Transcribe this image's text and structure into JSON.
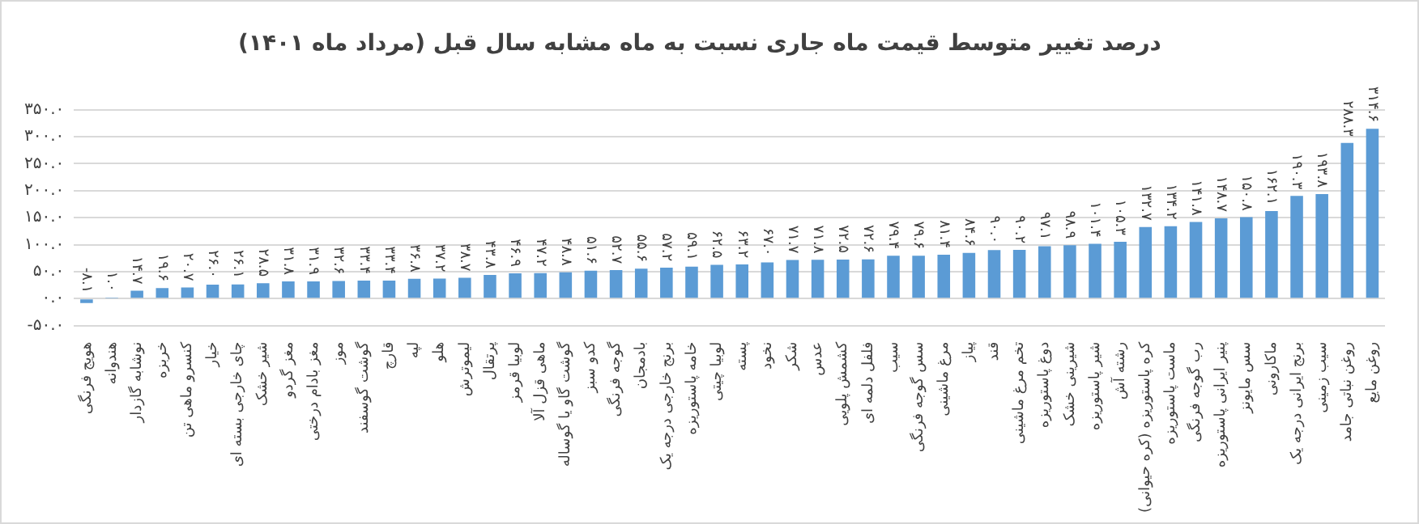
{
  "chart_data": {
    "type": "bar",
    "title": "درصد تغییر متوسط قیمت ماه جاری نسبت به ماه مشابه سال قبل (مرداد ماه ۱۴۰۱)",
    "categories": [
      "هویج فرنگی",
      "هندوانه",
      "نوشابه گازدار",
      "خربزه",
      "کنسرو ماهی تن",
      "خیار",
      "چای خارجی بسته ای",
      "شیر خشک",
      "مغز گردو",
      "مغز بادام درختی",
      "موز",
      "گوشت گوسفند",
      "قارچ",
      "لپه",
      "هلو",
      "لیموترش",
      "پرتقال",
      "لوبیا قرمز",
      "ماهی قزل آلا",
      "گوشت گاو یا گوساله",
      "کدو سبز",
      "گوجه فرنگی",
      "بادمجان",
      "برنج خارجی درجه یک",
      "خامه پاستوریزه",
      "لوبیا چیتی",
      "پسته",
      "نخود",
      "شکر",
      "عدس",
      "کشمش پلویی",
      "فلفل دلمه ای",
      "سیب",
      "سس گوجه فرنگی",
      "مرغ ماشینی",
      "پیاز",
      "قند",
      "تخم مرغ ماشینی",
      "دوغ پاستوریزه",
      "شیرینی خشک",
      "شیر پاستوریزه",
      "رشته آش",
      "کره پاستوریزه (کره حیوانی)",
      "ماست پاستوریزه",
      "رب گوجه فرنگی",
      "پنیر ایرانی پاستوریزه",
      "سس مایونز",
      "ماکارونی",
      "برنج ایرانی درجه یک",
      "سیب زمینی",
      "روغن نباتی جامد",
      "روغن مایع"
    ],
    "values": [
      -8.1,
      1.0,
      14.7,
      19.6,
      20.7,
      26.0,
      26.1,
      28.5,
      31.8,
      31.9,
      32.6,
      33.4,
      33.4,
      36.8,
      37.2,
      38.7,
      43.8,
      46.9,
      47.2,
      48.8,
      51.6,
      52.7,
      55.6,
      57.2,
      59.1,
      62.5,
      63.2,
      67.0,
      71.7,
      71.8,
      72.5,
      72.6,
      79.4,
      79.6,
      81.4,
      84.6,
      90.0,
      90.2,
      97.1,
      98.9,
      101.4,
      105.3,
      132.7,
      134.2,
      141.8,
      148.7,
      150.8,
      162.1,
      190.3,
      193.8,
      288.3,
      314.6
    ],
    "value_labels": [
      "-۸.۱",
      "۱.۰",
      "۱۴.۷",
      "۱۹.۶",
      "۲۰.۷",
      "۲۶.۰",
      "۲۶.۱",
      "۲۸.۵",
      "۳۱.۸",
      "۳۱.۹",
      "۳۲.۶",
      "۳۳.۴",
      "۳۳.۴",
      "۳۶.۸",
      "۳۷.۲",
      "۳۸.۷",
      "۴۳.۸",
      "۴۶.۹",
      "۴۷.۲",
      "۴۸.۸",
      "۵۱.۶",
      "۵۲.۷",
      "۵۵.۶",
      "۵۷.۲",
      "۵۹.۱",
      "۶۲.۵",
      "۶۳.۲",
      "۶۷.۰",
      "۷۱.۷",
      "۷۱.۸",
      "۷۲.۵",
      "۷۲.۶",
      "۷۹.۴",
      "۷۹.۶",
      "۸۱.۴",
      "۸۴.۶",
      "۹۰.۰",
      "۹۰.۲",
      "۹۷.۱",
      "۹۸.۹",
      "۱۰۱.۴",
      "۱۰۵.۳",
      "۱۳۲.۷",
      "۱۳۴.۲",
      "۱۴۱.۸",
      "۱۴۸.۷",
      "۱۵۰.۸",
      "۱۶۲.۱",
      "۱۹۰.۳",
      "۱۹۳.۸",
      "۲۸۸.۳",
      "۳۱۴.۶"
    ],
    "color": "#5b9bd5",
    "ylim": [
      -50,
      350
    ],
    "yticks": [
      {
        "value": -50,
        "label": "-۵۰.۰"
      },
      {
        "value": 0,
        "label": "۰.۰"
      },
      {
        "value": 50,
        "label": "۵۰.۰"
      },
      {
        "value": 100,
        "label": "۱۰۰.۰"
      },
      {
        "value": 150,
        "label": "۱۵۰.۰"
      },
      {
        "value": 200,
        "label": "۲۰۰.۰"
      },
      {
        "value": 250,
        "label": "۲۵۰.۰"
      },
      {
        "value": 300,
        "label": "۳۰۰.۰"
      },
      {
        "value": 350,
        "label": "۳۵۰.۰"
      }
    ],
    "grid": "y"
  }
}
